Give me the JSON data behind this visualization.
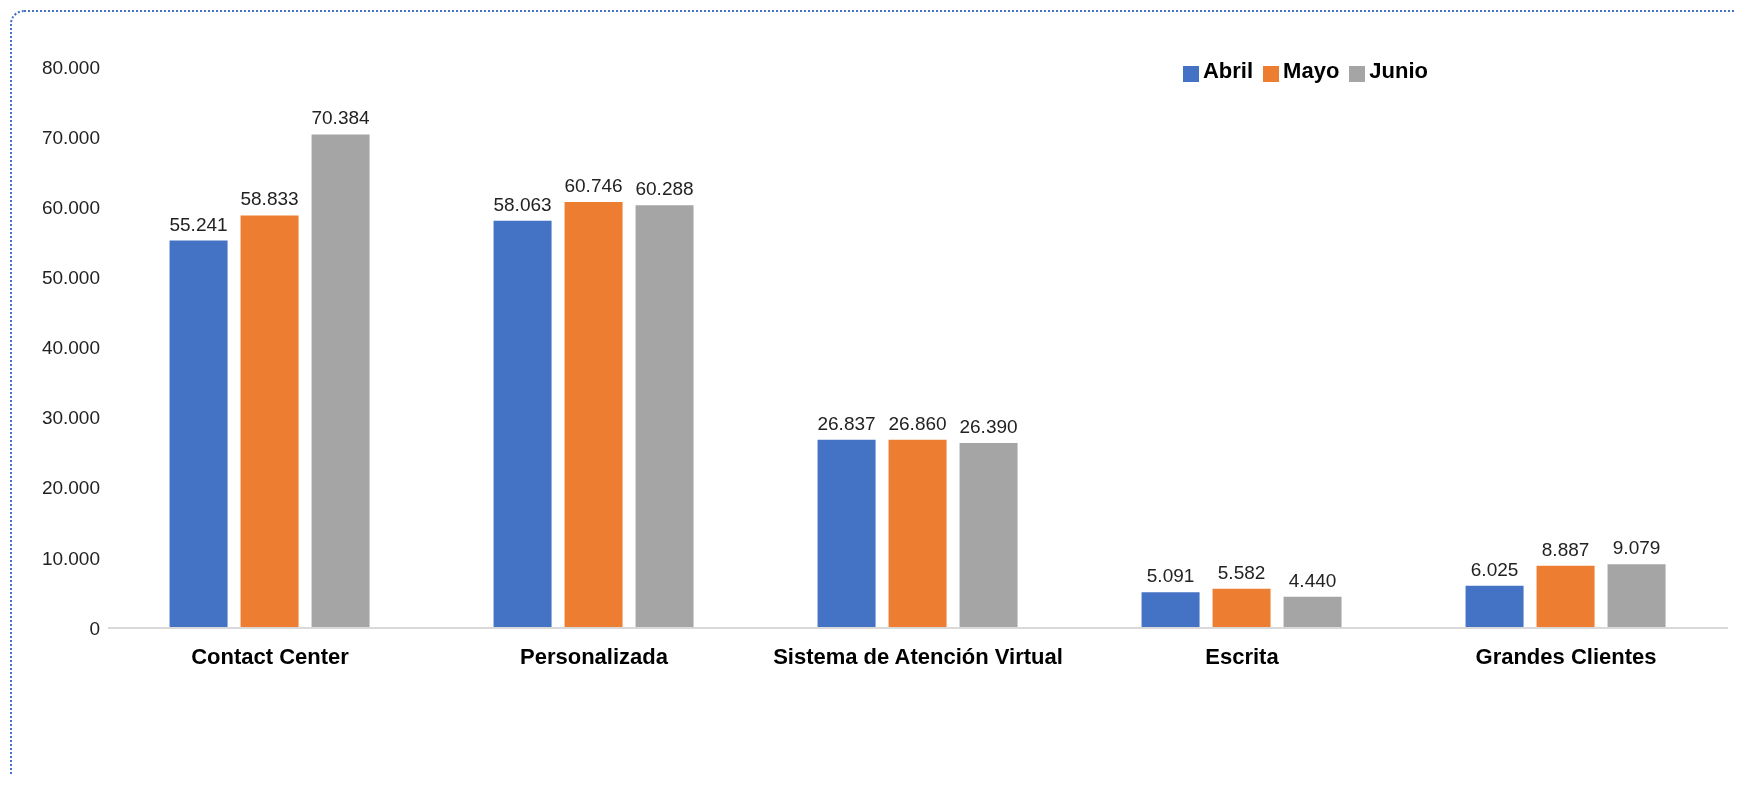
{
  "chart_data": {
    "type": "bar",
    "categories": [
      "Contact Center",
      "Personalizada",
      "Sistema de Atención Virtual",
      "Escrita",
      "Grandes Clientes"
    ],
    "series": [
      {
        "name": "Abril",
        "color": "#4472c4",
        "values": [
          55241,
          58063,
          26837,
          5091,
          6025
        ],
        "value_labels": [
          "55.241",
          "58.063",
          "26.837",
          "5.091",
          "6.025"
        ]
      },
      {
        "name": "Mayo",
        "color": "#ed7d31",
        "values": [
          58833,
          60746,
          26860,
          5582,
          8887
        ],
        "value_labels": [
          "58.833",
          "60.746",
          "26.860",
          "5.582",
          "8.887"
        ]
      },
      {
        "name": "Junio",
        "color": "#a5a5a5",
        "values": [
          70384,
          60288,
          26390,
          4440,
          9079
        ],
        "value_labels": [
          "70.384",
          "60.288",
          "26.390",
          "4.440",
          "9.079"
        ]
      }
    ],
    "ylim": [
      0,
      80000
    ],
    "yticks": [
      {
        "value": 0,
        "label": "0"
      },
      {
        "value": 10000,
        "label": "10.000"
      },
      {
        "value": 20000,
        "label": "20.000"
      },
      {
        "value": 30000,
        "label": "30.000"
      },
      {
        "value": 40000,
        "label": "40.000"
      },
      {
        "value": 50000,
        "label": "50.000"
      },
      {
        "value": 60000,
        "label": "60.000"
      },
      {
        "value": 70000,
        "label": "70.000"
      },
      {
        "value": 80000,
        "label": "80.000"
      }
    ],
    "grid": false,
    "legend": "top right"
  }
}
